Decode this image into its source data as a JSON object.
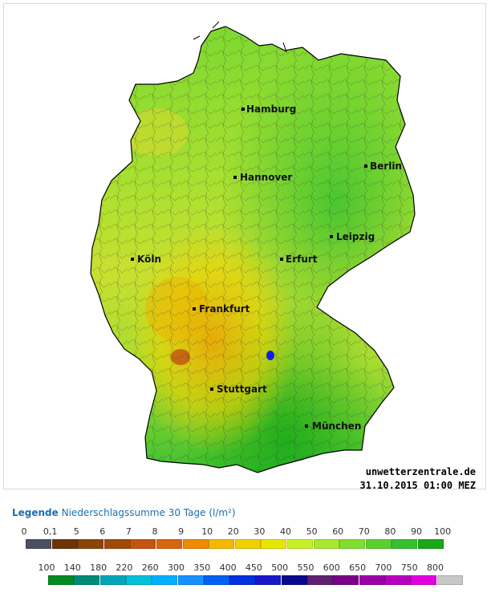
{
  "map": {
    "cities": [
      {
        "name": "Hamburg"
      },
      {
        "name": "Berlin"
      },
      {
        "name": "Hannover"
      },
      {
        "name": "Leipzig"
      },
      {
        "name": "Köln"
      },
      {
        "name": "Erfurt"
      },
      {
        "name": "Frankfurt"
      },
      {
        "name": "Stuttgart"
      },
      {
        "name": "München"
      }
    ],
    "brand": "unwetterzentrale.de",
    "timestamp": "31.10.2015 01:00 MEZ"
  },
  "legend": {
    "label": "Legende",
    "title": "Niederschlagssumme 30 Tage",
    "unit": "(l/m²)",
    "row1": {
      "ticks": [
        "0",
        "0,1",
        "5",
        "6",
        "7",
        "8",
        "9",
        "10",
        "20",
        "30",
        "40",
        "50",
        "60",
        "70",
        "80",
        "90",
        "100"
      ],
      "colors": [
        "#4a5060",
        "#6b3508",
        "#8a4508",
        "#a04a08",
        "#c25510",
        "#d66610",
        "#f08a00",
        "#f5b800",
        "#f0d000",
        "#e6e600",
        "#c8f028",
        "#a8e830",
        "#80de30",
        "#5ad030",
        "#38c030",
        "#18a818"
      ]
    },
    "row2": {
      "ticks": [
        "100",
        "140",
        "180",
        "220",
        "260",
        "300",
        "350",
        "400",
        "450",
        "500",
        "550",
        "600",
        "650",
        "700",
        "750",
        "800"
      ],
      "colors": [
        "#008a20",
        "#008a78",
        "#00a6b8",
        "#00c0d8",
        "#00b0ff",
        "#1890ff",
        "#0060f0",
        "#0030e0",
        "#1818c8",
        "#0a0a90",
        "#602070",
        "#7a0088",
        "#9c00a8",
        "#b800c0",
        "#e000e0",
        "#c8c8c8"
      ]
    }
  }
}
